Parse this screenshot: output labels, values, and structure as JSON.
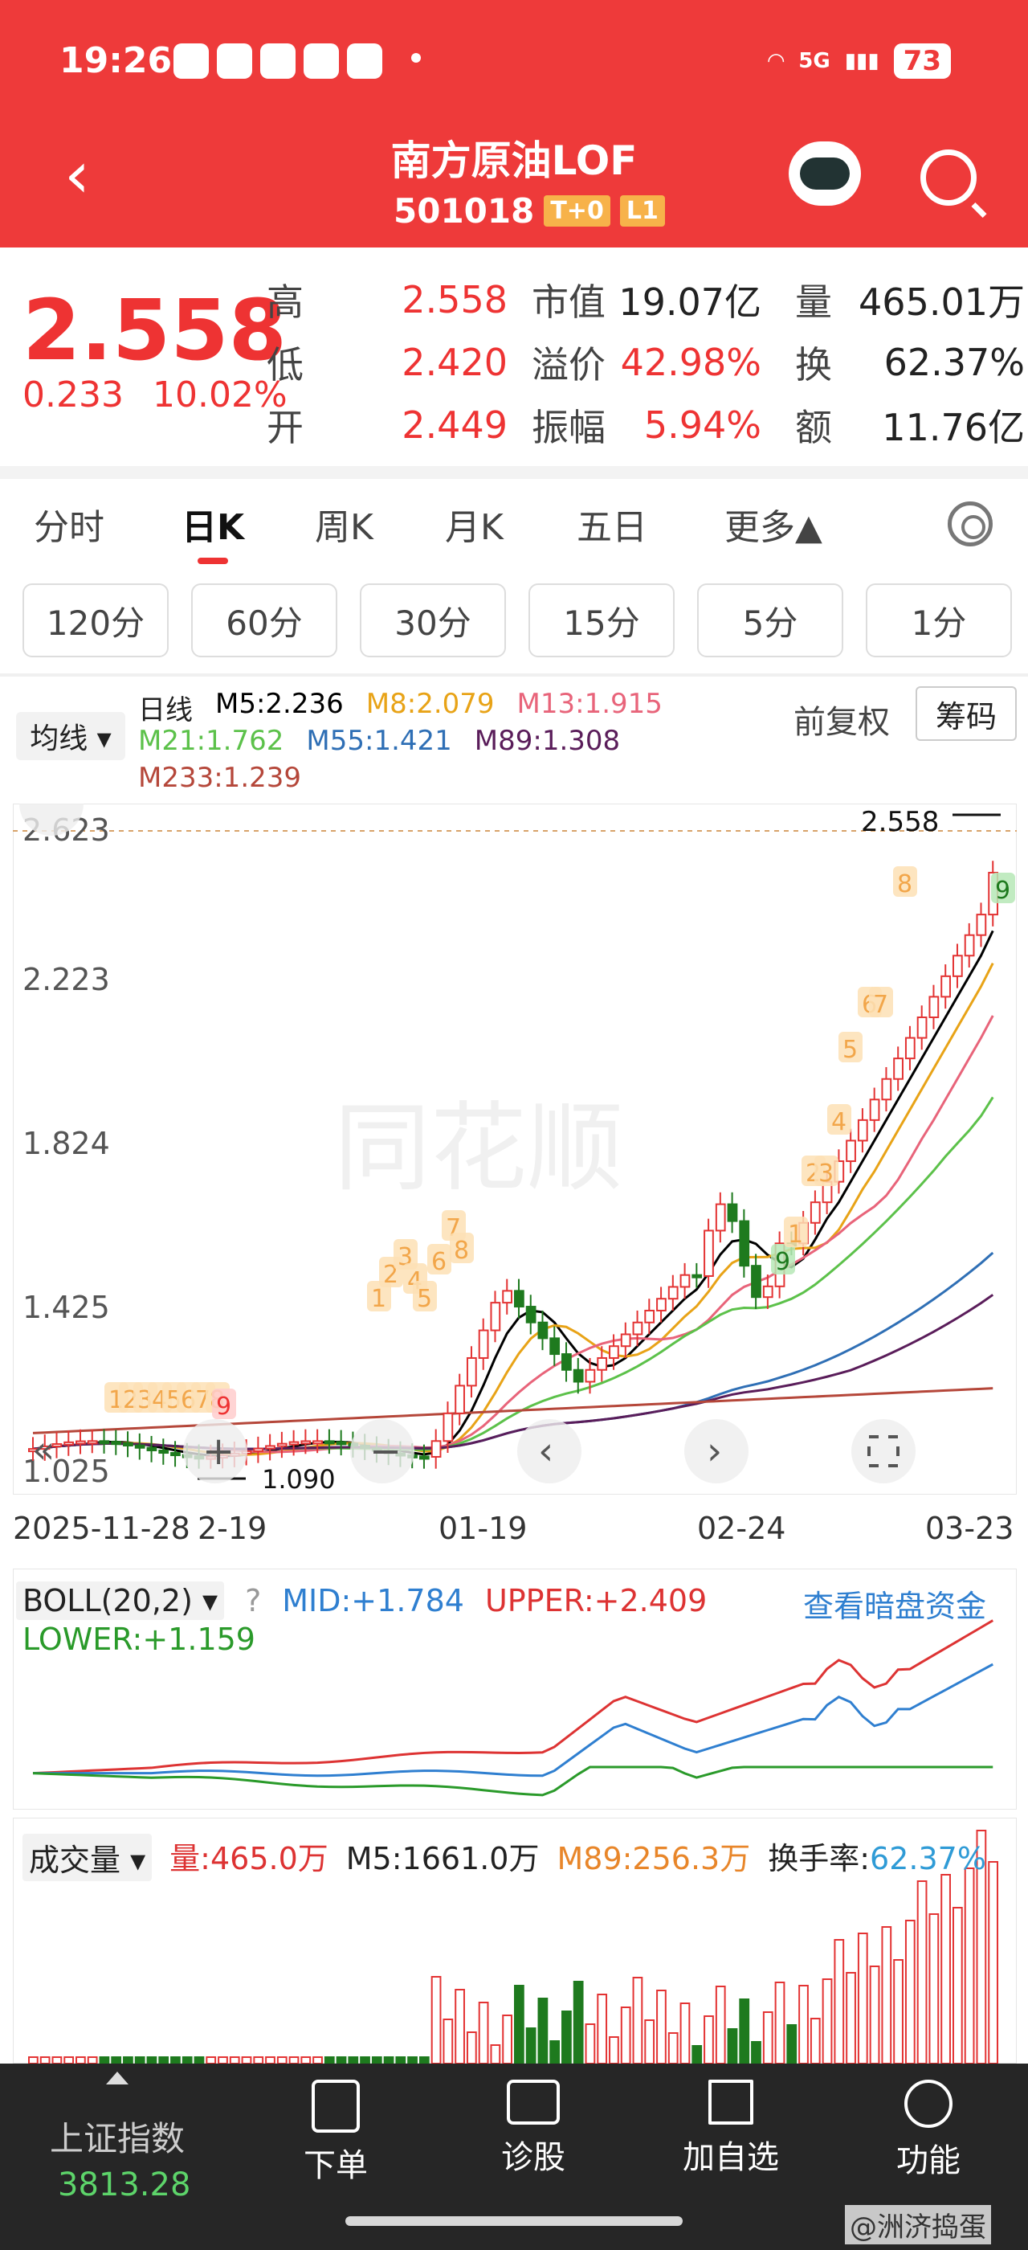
{
  "status_bar": {
    "time": "19:26",
    "network": "5G",
    "battery": "73"
  },
  "header": {
    "title": "南方原油LOF",
    "code": "501018",
    "badge_t0": "T+0",
    "badge_l1": "L1"
  },
  "quote": {
    "price": "2.558",
    "change": "0.233",
    "change_pct": "10.02%",
    "rows": [
      {
        "l1": "高",
        "v1": "2.558",
        "l2": "市值",
        "v2": "19.07亿",
        "l3": "量",
        "v3": "465.01万"
      },
      {
        "l1": "低",
        "v1": "2.420",
        "l2": "溢价",
        "v2": "42.98%",
        "l3": "换",
        "v3": "62.37%"
      },
      {
        "l1": "开",
        "v1": "2.449",
        "l2": "振幅",
        "v2": "5.94%",
        "l3": "额",
        "v3": "11.76亿"
      }
    ]
  },
  "tabs": [
    "分时",
    "日K",
    "周K",
    "月K",
    "五日",
    "更多▲"
  ],
  "periods": [
    "120分",
    "60分",
    "30分",
    "15分",
    "5分",
    "1分"
  ],
  "ma": {
    "selector": "均线 ▾",
    "label": "日线",
    "m5": "M5:2.236",
    "m8": "M8:2.079",
    "m13": "M13:1.915",
    "m21": "M21:1.762",
    "m55": "M55:1.421",
    "m89": "M89:1.308",
    "m233": "M233:1.239",
    "fq": "前复权",
    "chips": "筹码"
  },
  "colors": {
    "m5": "#000000",
    "m8": "#e8a317",
    "m13": "#e8647a",
    "m21": "#5cc14a",
    "m55": "#2f6fb5",
    "m89": "#5a1d5a",
    "m233": "#b5473a",
    "up": "#e33333",
    "down": "#1e7a1e"
  },
  "chart_data": {
    "type": "candlestick",
    "y_ticks": [
      "2.623",
      "2.223",
      "1.824",
      "1.425",
      "1.025"
    ],
    "x_ticks": [
      "2025-11-28",
      "2-19",
      "01-19",
      "02-24",
      "03-23"
    ],
    "annotations": {
      "high": "2.558",
      "low": "1.090"
    },
    "seq_top": [
      "1",
      "2",
      "3",
      "4",
      "5",
      "6",
      "7",
      "8",
      "9"
    ],
    "seq_bottom": [
      "1",
      "2",
      "3",
      "4",
      "5",
      "6",
      "7",
      "8",
      "9"
    ],
    "seq_right": [
      "1",
      "2",
      "3",
      "4",
      "5",
      "6",
      "7",
      "8",
      "9"
    ],
    "seq_early": "12345678",
    "seq_early_9": "9"
  },
  "boll": {
    "selector": "BOLL(20,2) ▾",
    "help": "?",
    "mid": "MID:+1.784",
    "upper": "UPPER:+2.409",
    "lower": "LOWER:+1.159",
    "link": "查看暗盘资金"
  },
  "volume": {
    "selector": "成交量 ▾",
    "vol": "量:465.0万",
    "m5": "M5:1661.0万",
    "m89": "M89:256.3万",
    "turnover_label": "换手率:",
    "turnover": "62.37%"
  },
  "bottom_nav": {
    "index_name": "上证指数",
    "index_val": "3813.28",
    "items": [
      "下单",
      "诊股",
      "加自选",
      "功能"
    ]
  },
  "watermark": "@洲济捣蛋"
}
